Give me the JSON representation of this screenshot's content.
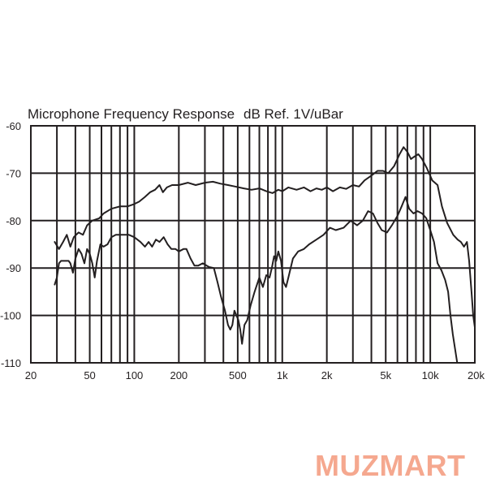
{
  "chart_data": {
    "type": "line",
    "title": "Microphone Frequency Response",
    "subtitle": "dB Ref. 1V/uBar",
    "x_scale": "log",
    "xlim": [
      20,
      20000
    ],
    "ylim": [
      -110,
      -60
    ],
    "grid": true,
    "x_ticks": [
      {
        "value": 20,
        "label": "20"
      },
      {
        "value": 50,
        "label": "50"
      },
      {
        "value": 100,
        "label": "100"
      },
      {
        "value": 200,
        "label": "200"
      },
      {
        "value": 500,
        "label": "500"
      },
      {
        "value": 1000,
        "label": "1k"
      },
      {
        "value": 2000,
        "label": "2k"
      },
      {
        "value": 5000,
        "label": "5k"
      },
      {
        "value": 10000,
        "label": "10k"
      },
      {
        "value": 20000,
        "label": "20k"
      }
    ],
    "y_ticks": [
      {
        "value": -60,
        "label": "-60"
      },
      {
        "value": -70,
        "label": "-70"
      },
      {
        "value": -80,
        "label": "-80"
      },
      {
        "value": -90,
        "label": "-90"
      },
      {
        "value": -100,
        "label": "-100"
      },
      {
        "value": -110,
        "label": "-110"
      }
    ],
    "grid_x": [
      30,
      40,
      50,
      60,
      70,
      80,
      90,
      100,
      200,
      300,
      400,
      500,
      600,
      700,
      800,
      900,
      1000,
      2000,
      3000,
      4000,
      5000,
      6000,
      7000,
      8000,
      9000,
      10000,
      20000
    ],
    "series": [
      {
        "points": [
          [
            29,
            -84.5
          ],
          [
            31,
            -86
          ],
          [
            33,
            -84.5
          ],
          [
            35,
            -83
          ],
          [
            37,
            -85.5
          ],
          [
            39,
            -83.5
          ],
          [
            42,
            -82.5
          ],
          [
            45,
            -83
          ],
          [
            48,
            -81
          ],
          [
            52,
            -80
          ],
          [
            58,
            -79.5
          ],
          [
            62,
            -78.5
          ],
          [
            70,
            -77.5
          ],
          [
            80,
            -77
          ],
          [
            90,
            -77
          ],
          [
            100,
            -76.5
          ],
          [
            108,
            -76
          ],
          [
            118,
            -75
          ],
          [
            128,
            -74
          ],
          [
            138,
            -73.5
          ],
          [
            148,
            -72.5
          ],
          [
            156,
            -74
          ],
          [
            166,
            -73
          ],
          [
            180,
            -72.5
          ],
          [
            200,
            -72.5
          ],
          [
            230,
            -72
          ],
          [
            260,
            -72.5
          ],
          [
            300,
            -72
          ],
          [
            340,
            -71.8
          ],
          [
            380,
            -72.2
          ],
          [
            430,
            -72.5
          ],
          [
            480,
            -72.8
          ],
          [
            550,
            -73.2
          ],
          [
            620,
            -73.5
          ],
          [
            700,
            -73.2
          ],
          [
            780,
            -73.8
          ],
          [
            860,
            -74.2
          ],
          [
            940,
            -73.5
          ],
          [
            1000,
            -73.8
          ],
          [
            1100,
            -73
          ],
          [
            1250,
            -73.5
          ],
          [
            1400,
            -73
          ],
          [
            1550,
            -73.8
          ],
          [
            1700,
            -73.2
          ],
          [
            1850,
            -73.5
          ],
          [
            2000,
            -73
          ],
          [
            2200,
            -73.8
          ],
          [
            2450,
            -73
          ],
          [
            2700,
            -73.3
          ],
          [
            3000,
            -72.5
          ],
          [
            3300,
            -72.8
          ],
          [
            3600,
            -71.5
          ],
          [
            4000,
            -70.5
          ],
          [
            4400,
            -69.5
          ],
          [
            4800,
            -69.5
          ],
          [
            5200,
            -70
          ],
          [
            5700,
            -68.5
          ],
          [
            6200,
            -66
          ],
          [
            6600,
            -64.5
          ],
          [
            7000,
            -65.5
          ],
          [
            7400,
            -67
          ],
          [
            7800,
            -66.5
          ],
          [
            8300,
            -66
          ],
          [
            8800,
            -67
          ],
          [
            9500,
            -69
          ],
          [
            10300,
            -71.5
          ],
          [
            11200,
            -72.5
          ],
          [
            12000,
            -77
          ],
          [
            13000,
            -80.5
          ],
          [
            14300,
            -83
          ],
          [
            15300,
            -84
          ],
          [
            16100,
            -84.5
          ],
          [
            16900,
            -85.5
          ],
          [
            17700,
            -84.5
          ],
          [
            18300,
            -88.5
          ],
          [
            19000,
            -95
          ],
          [
            19500,
            -100
          ],
          [
            20000,
            -102.5
          ]
        ]
      },
      {
        "points": [
          [
            29,
            -93.5
          ],
          [
            30,
            -92
          ],
          [
            31,
            -89
          ],
          [
            32,
            -88.5
          ],
          [
            34,
            -88.5
          ],
          [
            36,
            -88.5
          ],
          [
            37,
            -89
          ],
          [
            38.5,
            -91
          ],
          [
            40,
            -88
          ],
          [
            42,
            -86
          ],
          [
            44,
            -87
          ],
          [
            46,
            -89
          ],
          [
            48,
            -86
          ],
          [
            50,
            -87
          ],
          [
            52,
            -89
          ],
          [
            54,
            -92
          ],
          [
            56,
            -88.5
          ],
          [
            59,
            -85
          ],
          [
            62,
            -85.5
          ],
          [
            66,
            -85
          ],
          [
            70,
            -83.5
          ],
          [
            75,
            -83
          ],
          [
            82,
            -83
          ],
          [
            92,
            -83
          ],
          [
            100,
            -83.5
          ],
          [
            110,
            -84.5
          ],
          [
            118,
            -85.5
          ],
          [
            125,
            -84.5
          ],
          [
            132,
            -85.5
          ],
          [
            140,
            -84
          ],
          [
            148,
            -84.5
          ],
          [
            158,
            -83.5
          ],
          [
            168,
            -85
          ],
          [
            178,
            -86
          ],
          [
            190,
            -86
          ],
          [
            200,
            -86.5
          ],
          [
            215,
            -86
          ],
          [
            225,
            -86
          ],
          [
            240,
            -88
          ],
          [
            255,
            -89.5
          ],
          [
            270,
            -89.5
          ],
          [
            290,
            -89
          ],
          [
            320,
            -89.8
          ],
          [
            345,
            -90
          ],
          [
            365,
            -93
          ],
          [
            385,
            -96
          ],
          [
            410,
            -99
          ],
          [
            430,
            -102
          ],
          [
            445,
            -103
          ],
          [
            460,
            -102
          ],
          [
            475,
            -99
          ],
          [
            490,
            -100
          ],
          [
            505,
            -101
          ],
          [
            520,
            -103
          ],
          [
            535,
            -106
          ],
          [
            555,
            -102
          ],
          [
            580,
            -101
          ],
          [
            610,
            -98
          ],
          [
            650,
            -95
          ],
          [
            700,
            -92
          ],
          [
            740,
            -94
          ],
          [
            780,
            -91.5
          ],
          [
            820,
            -92
          ],
          [
            850,
            -90
          ],
          [
            880,
            -87.5
          ],
          [
            910,
            -88.5
          ],
          [
            940,
            -86.5
          ],
          [
            980,
            -88.5
          ],
          [
            1020,
            -93
          ],
          [
            1060,
            -94
          ],
          [
            1100,
            -92
          ],
          [
            1180,
            -88
          ],
          [
            1280,
            -86.5
          ],
          [
            1400,
            -86
          ],
          [
            1520,
            -85
          ],
          [
            1700,
            -84
          ],
          [
            1900,
            -83
          ],
          [
            2100,
            -81.5
          ],
          [
            2300,
            -82
          ],
          [
            2600,
            -81.5
          ],
          [
            2900,
            -80
          ],
          [
            3200,
            -81
          ],
          [
            3500,
            -80
          ],
          [
            3800,
            -78
          ],
          [
            4100,
            -78.5
          ],
          [
            4400,
            -80.5
          ],
          [
            4700,
            -82
          ],
          [
            5100,
            -82.5
          ],
          [
            5500,
            -81
          ],
          [
            6000,
            -79
          ],
          [
            6400,
            -77
          ],
          [
            6800,
            -75
          ],
          [
            7200,
            -77.5
          ],
          [
            7700,
            -78.5
          ],
          [
            8200,
            -78
          ],
          [
            8800,
            -78.5
          ],
          [
            9400,
            -79.5
          ],
          [
            10000,
            -82
          ],
          [
            10600,
            -84.5
          ],
          [
            11200,
            -89
          ],
          [
            11900,
            -90.5
          ],
          [
            12600,
            -92.5
          ],
          [
            13200,
            -95
          ],
          [
            13700,
            -100
          ],
          [
            14200,
            -104
          ],
          [
            14700,
            -107
          ],
          [
            15200,
            -110
          ]
        ]
      }
    ]
  },
  "watermark": {
    "text": "MUZMART",
    "color": "#f28c6a"
  }
}
